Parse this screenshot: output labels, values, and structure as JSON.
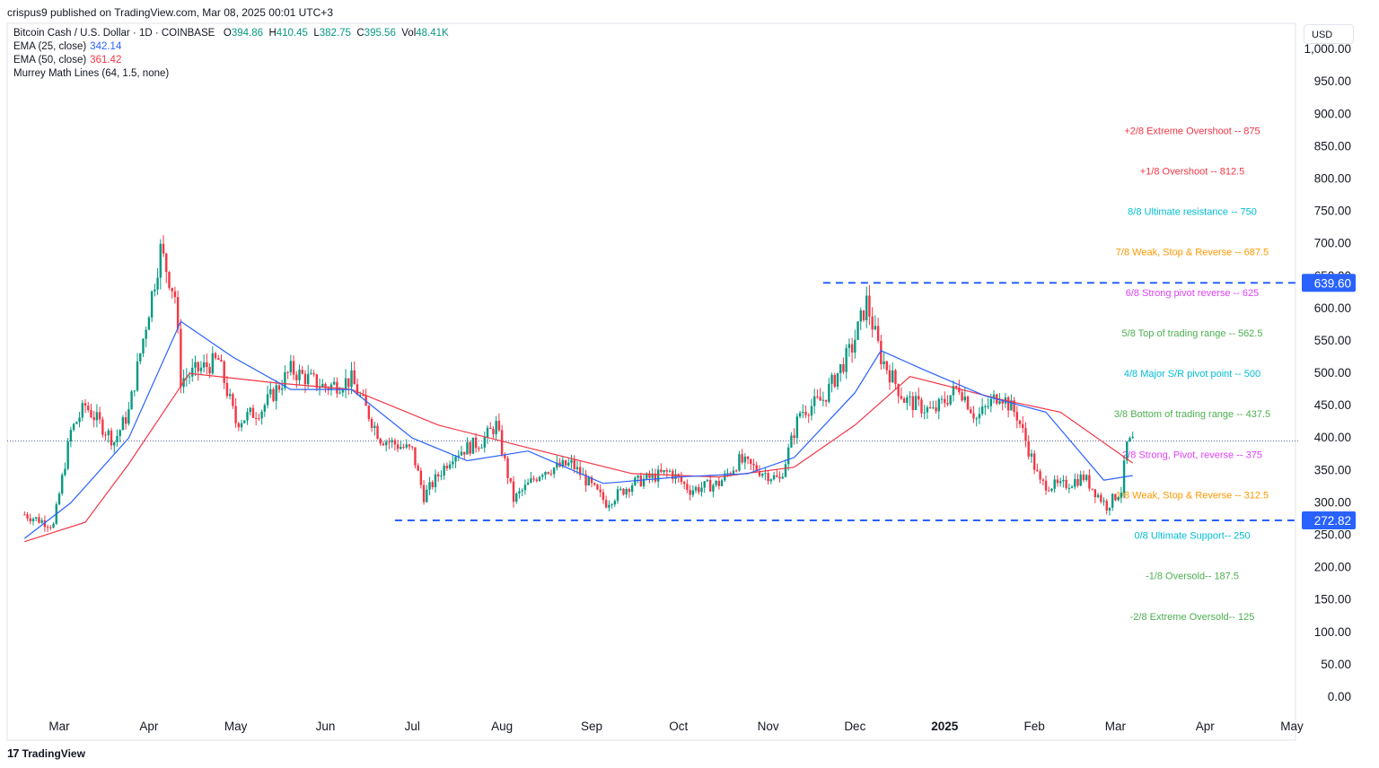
{
  "header": {
    "published": "crispus9 published on TradingView.com, Mar 08, 2025 00:01 UTC+3"
  },
  "legend": {
    "symbol": "Bitcoin Cash / U.S. Dollar · 1D · COINBASE",
    "ohlc": [
      {
        "label": "O",
        "value": "394.86"
      },
      {
        "label": "H",
        "value": "410.45"
      },
      {
        "label": "L",
        "value": "382.75"
      },
      {
        "label": "C",
        "value": "395.56"
      },
      {
        "label": "Vol",
        "value": "48.41K"
      }
    ],
    "ema25": {
      "label": "EMA (25, close)",
      "value": "342.14",
      "color": "#2962ff"
    },
    "ema50": {
      "label": "EMA (50, close)",
      "value": "361.42",
      "color": "#f23645"
    },
    "murrey": {
      "label": "Murrey Math Lines (64, 1.5, none)"
    }
  },
  "currency_button": "USD",
  "footer": {
    "brand": "TradingView",
    "logo_mark": "17"
  },
  "chart_data": {
    "type": "candlestick",
    "y_axis": {
      "min": 0,
      "max": 1000,
      "ticks": [
        0,
        50,
        100,
        150,
        200,
        250,
        300,
        350,
        400,
        450,
        500,
        550,
        600,
        650,
        700,
        750,
        800,
        850,
        900,
        950,
        1000
      ],
      "tick_labels": [
        "0.00",
        "50.00",
        "100.00",
        "150.00",
        "200.00",
        "250.00",
        "300.00",
        "350.00",
        "400.00",
        "450.00",
        "500.00",
        "550.00",
        "600.00",
        "650.00",
        "700.00",
        "750.00",
        "800.00",
        "850.00",
        "900.00",
        "950.00",
        "1,000.00"
      ]
    },
    "x_axis": {
      "labels": [
        "Mar",
        "Apr",
        "May",
        "Jun",
        "Jul",
        "Aug",
        "Sep",
        "Oct",
        "Nov",
        "Dec",
        "2025",
        "Feb",
        "Mar",
        "Apr",
        "May"
      ],
      "bold": [
        "2025"
      ]
    },
    "price_labels": [
      {
        "value": 639.6,
        "text": "639.60",
        "color": "#2962ff"
      },
      {
        "value": 272.82,
        "text": "272.82",
        "color": "#2962ff"
      }
    ],
    "current_price": 395.56,
    "horizontal_lines": [
      {
        "value": 639.6,
        "from": "2024-11-20",
        "style": "dashed",
        "color": "#2962ff"
      },
      {
        "value": 272.82,
        "from": "2024-06-25",
        "style": "dashed",
        "color": "#2962ff"
      }
    ],
    "murrey_levels": [
      {
        "text": "+2/8 Extreme Overshoot --  875",
        "value": 875,
        "color": "#f23645"
      },
      {
        "text": "+1/8 Overshoot --  812.5",
        "value": 812.5,
        "color": "#f23645"
      },
      {
        "text": "8/8 Ultimate resistance --  750",
        "value": 750,
        "color": "#00bcd4"
      },
      {
        "text": "7/8 Weak, Stop & Reverse --  687.5",
        "value": 687.5,
        "color": "#ff9800"
      },
      {
        "text": "6/8 Strong pivot reverse --  625",
        "value": 625,
        "color": "#e040fb"
      },
      {
        "text": "5/8 Top of trading range --  562.5",
        "value": 562.5,
        "color": "#4caf50"
      },
      {
        "text": "4/8 Major S/R pivot point --  500",
        "value": 500,
        "color": "#00bcd4"
      },
      {
        "text": "3/8 Bottom of trading range --  437.5",
        "value": 437.5,
        "color": "#4caf50"
      },
      {
        "text": "2/8 Strong, Pivot, reverse --  375",
        "value": 375,
        "color": "#e040fb"
      },
      {
        "text": "1/8 Weak, Stop & Reverse --  312.5",
        "value": 312.5,
        "color": "#ff9800"
      },
      {
        "text": "0/8 Ultimate Support--  250",
        "value": 250,
        "color": "#00bcd4"
      },
      {
        "text": "-1/8 Oversold--  187.5",
        "value": 187.5,
        "color": "#4caf50"
      },
      {
        "text": "-2/8 Extreme Oversold--  125",
        "value": 125,
        "color": "#4caf50"
      }
    ],
    "price_path": [
      {
        "date": "2024-02-18",
        "close": 282
      },
      {
        "date": "2024-02-28",
        "close": 265
      },
      {
        "date": "2024-03-05",
        "close": 410
      },
      {
        "date": "2024-03-10",
        "close": 450
      },
      {
        "date": "2024-03-20",
        "close": 395
      },
      {
        "date": "2024-03-25",
        "close": 440
      },
      {
        "date": "2024-04-05",
        "close": 690
      },
      {
        "date": "2024-04-10",
        "close": 620
      },
      {
        "date": "2024-04-12",
        "close": 490
      },
      {
        "date": "2024-04-18",
        "close": 505
      },
      {
        "date": "2024-04-25",
        "close": 520
      },
      {
        "date": "2024-05-01",
        "close": 425
      },
      {
        "date": "2024-05-10",
        "close": 445
      },
      {
        "date": "2024-05-20",
        "close": 505
      },
      {
        "date": "2024-06-01",
        "close": 478
      },
      {
        "date": "2024-06-10",
        "close": 490
      },
      {
        "date": "2024-06-20",
        "close": 400
      },
      {
        "date": "2024-07-01",
        "close": 380
      },
      {
        "date": "2024-07-05",
        "close": 310
      },
      {
        "date": "2024-07-15",
        "close": 375
      },
      {
        "date": "2024-07-25",
        "close": 395
      },
      {
        "date": "2024-07-30",
        "close": 420
      },
      {
        "date": "2024-08-05",
        "close": 305
      },
      {
        "date": "2024-08-15",
        "close": 350
      },
      {
        "date": "2024-08-25",
        "close": 360
      },
      {
        "date": "2024-09-06",
        "close": 300
      },
      {
        "date": "2024-09-15",
        "close": 330
      },
      {
        "date": "2024-09-28",
        "close": 348
      },
      {
        "date": "2024-10-05",
        "close": 320
      },
      {
        "date": "2024-10-15",
        "close": 330
      },
      {
        "date": "2024-10-22",
        "close": 365
      },
      {
        "date": "2024-11-05",
        "close": 335
      },
      {
        "date": "2024-11-12",
        "close": 440
      },
      {
        "date": "2024-11-20",
        "close": 460
      },
      {
        "date": "2024-11-30",
        "close": 540
      },
      {
        "date": "2024-12-05",
        "close": 610
      },
      {
        "date": "2024-12-10",
        "close": 525
      },
      {
        "date": "2024-12-18",
        "close": 460
      },
      {
        "date": "2024-12-28",
        "close": 440
      },
      {
        "date": "2025-01-06",
        "close": 480
      },
      {
        "date": "2025-01-12",
        "close": 430
      },
      {
        "date": "2025-01-20",
        "close": 470
      },
      {
        "date": "2025-01-26",
        "close": 435
      },
      {
        "date": "2025-02-03",
        "close": 330
      },
      {
        "date": "2025-02-10",
        "close": 325
      },
      {
        "date": "2025-02-18",
        "close": 340
      },
      {
        "date": "2025-02-26",
        "close": 295
      },
      {
        "date": "2025-03-03",
        "close": 320
      },
      {
        "date": "2025-03-05",
        "close": 390
      },
      {
        "date": "2025-03-07",
        "close": 395.56
      }
    ],
    "ema25_path": [
      {
        "date": "2024-02-18",
        "value": 245
      },
      {
        "date": "2024-03-05",
        "value": 300
      },
      {
        "date": "2024-03-25",
        "value": 400
      },
      {
        "date": "2024-04-12",
        "value": 580
      },
      {
        "date": "2024-04-30",
        "value": 525
      },
      {
        "date": "2024-05-20",
        "value": 475
      },
      {
        "date": "2024-06-10",
        "value": 475
      },
      {
        "date": "2024-07-01",
        "value": 400
      },
      {
        "date": "2024-07-20",
        "value": 365
      },
      {
        "date": "2024-08-10",
        "value": 380
      },
      {
        "date": "2024-09-05",
        "value": 330
      },
      {
        "date": "2024-10-01",
        "value": 340
      },
      {
        "date": "2024-10-25",
        "value": 345
      },
      {
        "date": "2024-11-10",
        "value": 370
      },
      {
        "date": "2024-12-01",
        "value": 470
      },
      {
        "date": "2024-12-10",
        "value": 535
      },
      {
        "date": "2024-12-25",
        "value": 505
      },
      {
        "date": "2025-01-15",
        "value": 465
      },
      {
        "date": "2025-02-05",
        "value": 440
      },
      {
        "date": "2025-02-25",
        "value": 335
      },
      {
        "date": "2025-03-07",
        "value": 342.14
      }
    ],
    "ema50_path": [
      {
        "date": "2024-02-18",
        "value": 240
      },
      {
        "date": "2024-03-10",
        "value": 270
      },
      {
        "date": "2024-03-25",
        "value": 360
      },
      {
        "date": "2024-04-15",
        "value": 500
      },
      {
        "date": "2024-05-15",
        "value": 485
      },
      {
        "date": "2024-06-10",
        "value": 475
      },
      {
        "date": "2024-07-10",
        "value": 420
      },
      {
        "date": "2024-08-10",
        "value": 385
      },
      {
        "date": "2024-09-15",
        "value": 345
      },
      {
        "date": "2024-10-15",
        "value": 340
      },
      {
        "date": "2024-11-10",
        "value": 355
      },
      {
        "date": "2024-12-01",
        "value": 420
      },
      {
        "date": "2024-12-20",
        "value": 495
      },
      {
        "date": "2025-01-20",
        "value": 460
      },
      {
        "date": "2025-02-10",
        "value": 440
      },
      {
        "date": "2025-03-07",
        "value": 361.42
      }
    ]
  }
}
